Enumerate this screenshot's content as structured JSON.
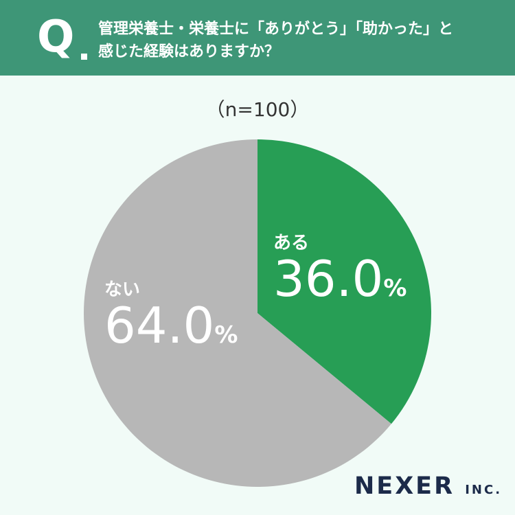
{
  "question": {
    "mark": "Q",
    "lines": [
      "管理栄養士・栄養士に「ありがとう」「助かった」と",
      "感じた経験はありますか？"
    ]
  },
  "sample_size": "（n=100）",
  "logo": {
    "name": "NEXER",
    "suffix": "INC."
  },
  "chart_data": {
    "type": "pie",
    "slices": [
      {
        "name": "ある",
        "value": 36.0,
        "color": "#279e55"
      },
      {
        "name": "ない",
        "value": 64.0,
        "color": "#b7b7b7"
      }
    ],
    "value_format": "0.0",
    "unit": "%"
  }
}
